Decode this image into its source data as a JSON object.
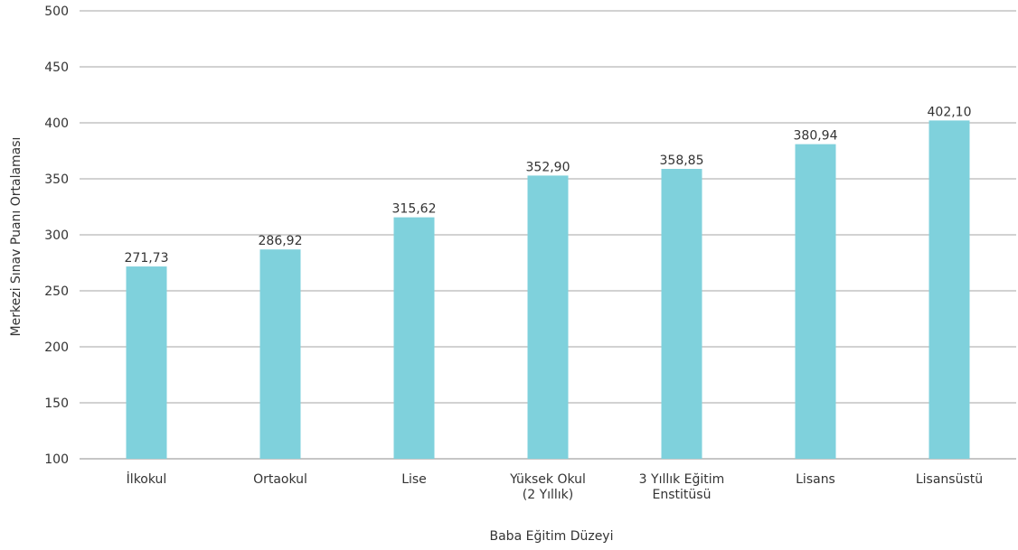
{
  "chart_data": {
    "type": "bar",
    "categories": [
      [
        "İlkokul"
      ],
      [
        "Ortaokul"
      ],
      [
        "Lise"
      ],
      [
        "Yüksek Okul",
        "(2 Yıllık)"
      ],
      [
        "3 Yıllık Eğitim",
        "Enstitüsü"
      ],
      [
        "Lisans"
      ],
      [
        "Lisansüstü"
      ]
    ],
    "values": [
      271.73,
      286.92,
      315.62,
      352.9,
      358.85,
      380.94,
      402.1
    ],
    "value_labels": [
      "271,73",
      "286,92",
      "315,62",
      "352,90",
      "358,85",
      "380,94",
      "402,10"
    ],
    "xlabel": "Baba Eğitim Düzeyi",
    "ylabel": "Merkezi Sınav Puanı Ortalaması",
    "ylim": [
      100,
      500
    ],
    "yticks": [
      100,
      150,
      200,
      250,
      300,
      350,
      400,
      450,
      500
    ],
    "grid": true,
    "bar_color": "#7fd1dc"
  }
}
